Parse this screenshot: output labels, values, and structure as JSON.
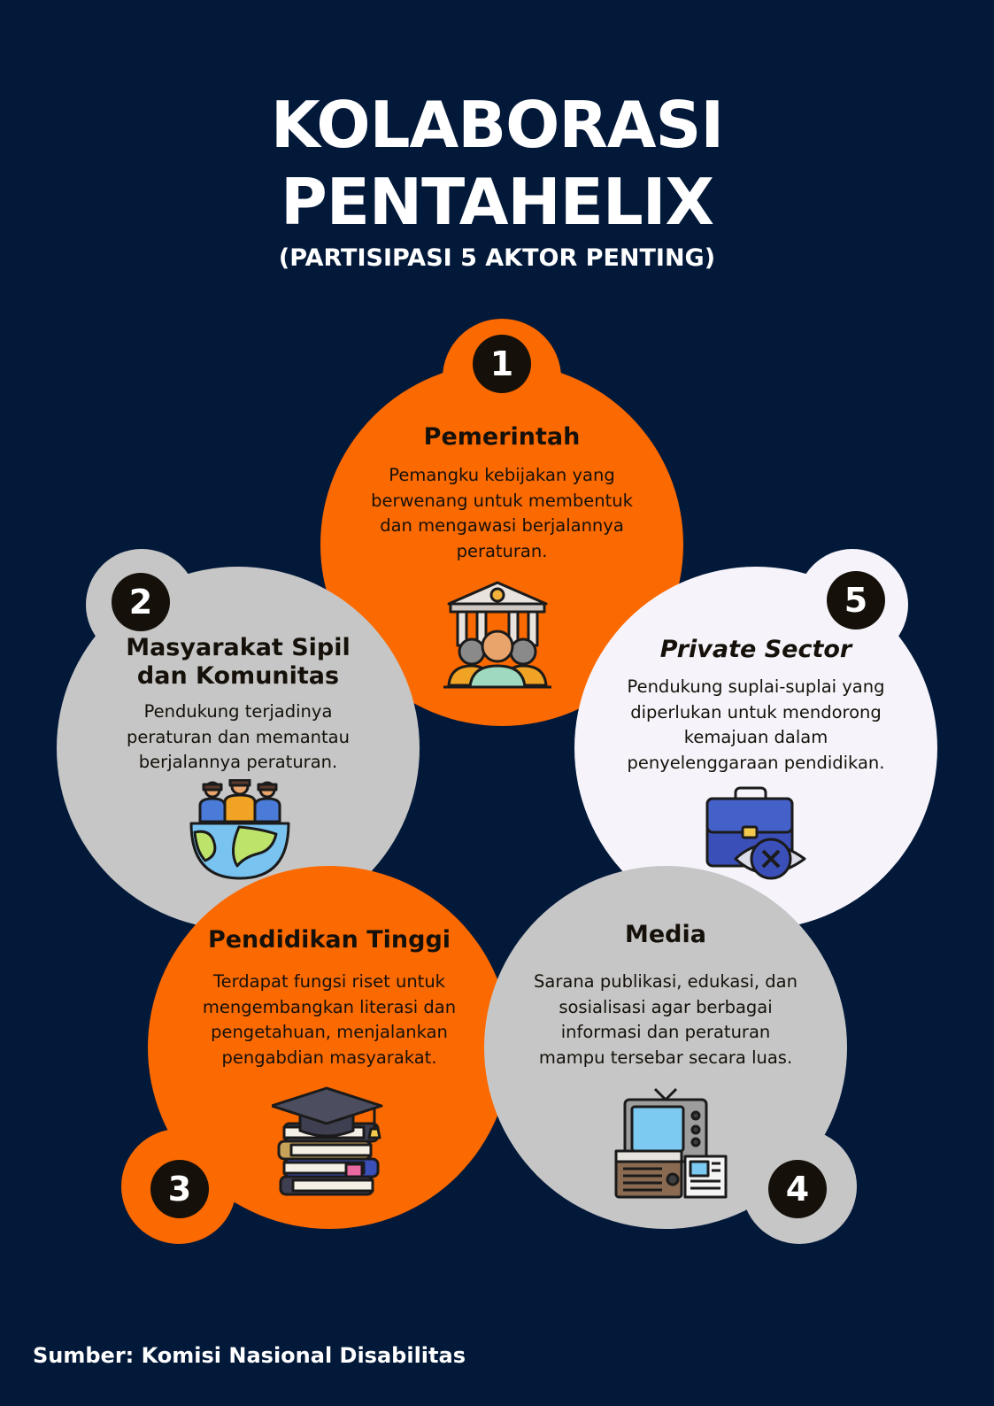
{
  "title": {
    "line1": "KOLABORASI",
    "line2": "PENTAHELIX",
    "subtitle": "(PARTISIPASI 5 AKTOR PENTING)"
  },
  "actors": [
    {
      "number": "1",
      "name": "Pemerintah",
      "description": "Pemangku kebijakan yang berwenang untuk membentuk dan mengawasi berjalannya peraturan.",
      "color": "#fb6901",
      "icon": "government-building-people-icon"
    },
    {
      "number": "2",
      "name": "Masyarakat Sipil dan Komunitas",
      "description": "Pendukung terjadinya peraturan dan memantau berjalannya peraturan.",
      "color": "#c6c6c6",
      "icon": "community-globe-icon"
    },
    {
      "number": "3",
      "name": "Pendidikan Tinggi",
      "description": "Terdapat fungsi riset untuk mengembangkan literasi dan pengetahuan, menjalankan pengabdian masyarakat.",
      "color": "#fb6901",
      "icon": "graduation-cap-books-icon"
    },
    {
      "number": "4",
      "name": "Media",
      "description": "Sarana publikasi, edukasi, dan sosialisasi agar berbagai informasi dan peraturan mampu tersebar secara luas.",
      "color": "#c6c6c6",
      "icon": "tv-radio-newspaper-icon"
    },
    {
      "number": "5",
      "name": "Private Sector",
      "description": "Pendukung suplai-suplai yang diperlukan untuk mendorong kemajuan dalam penyelenggaraan pendidikan.",
      "color": "#f6f4fa",
      "icon": "briefcase-eye-icon"
    }
  ],
  "source": "Sumber: Komisi Nasional Disabilitas",
  "colors": {
    "background": "#03193a",
    "badge": "#15110a",
    "text": "#15110a"
  }
}
